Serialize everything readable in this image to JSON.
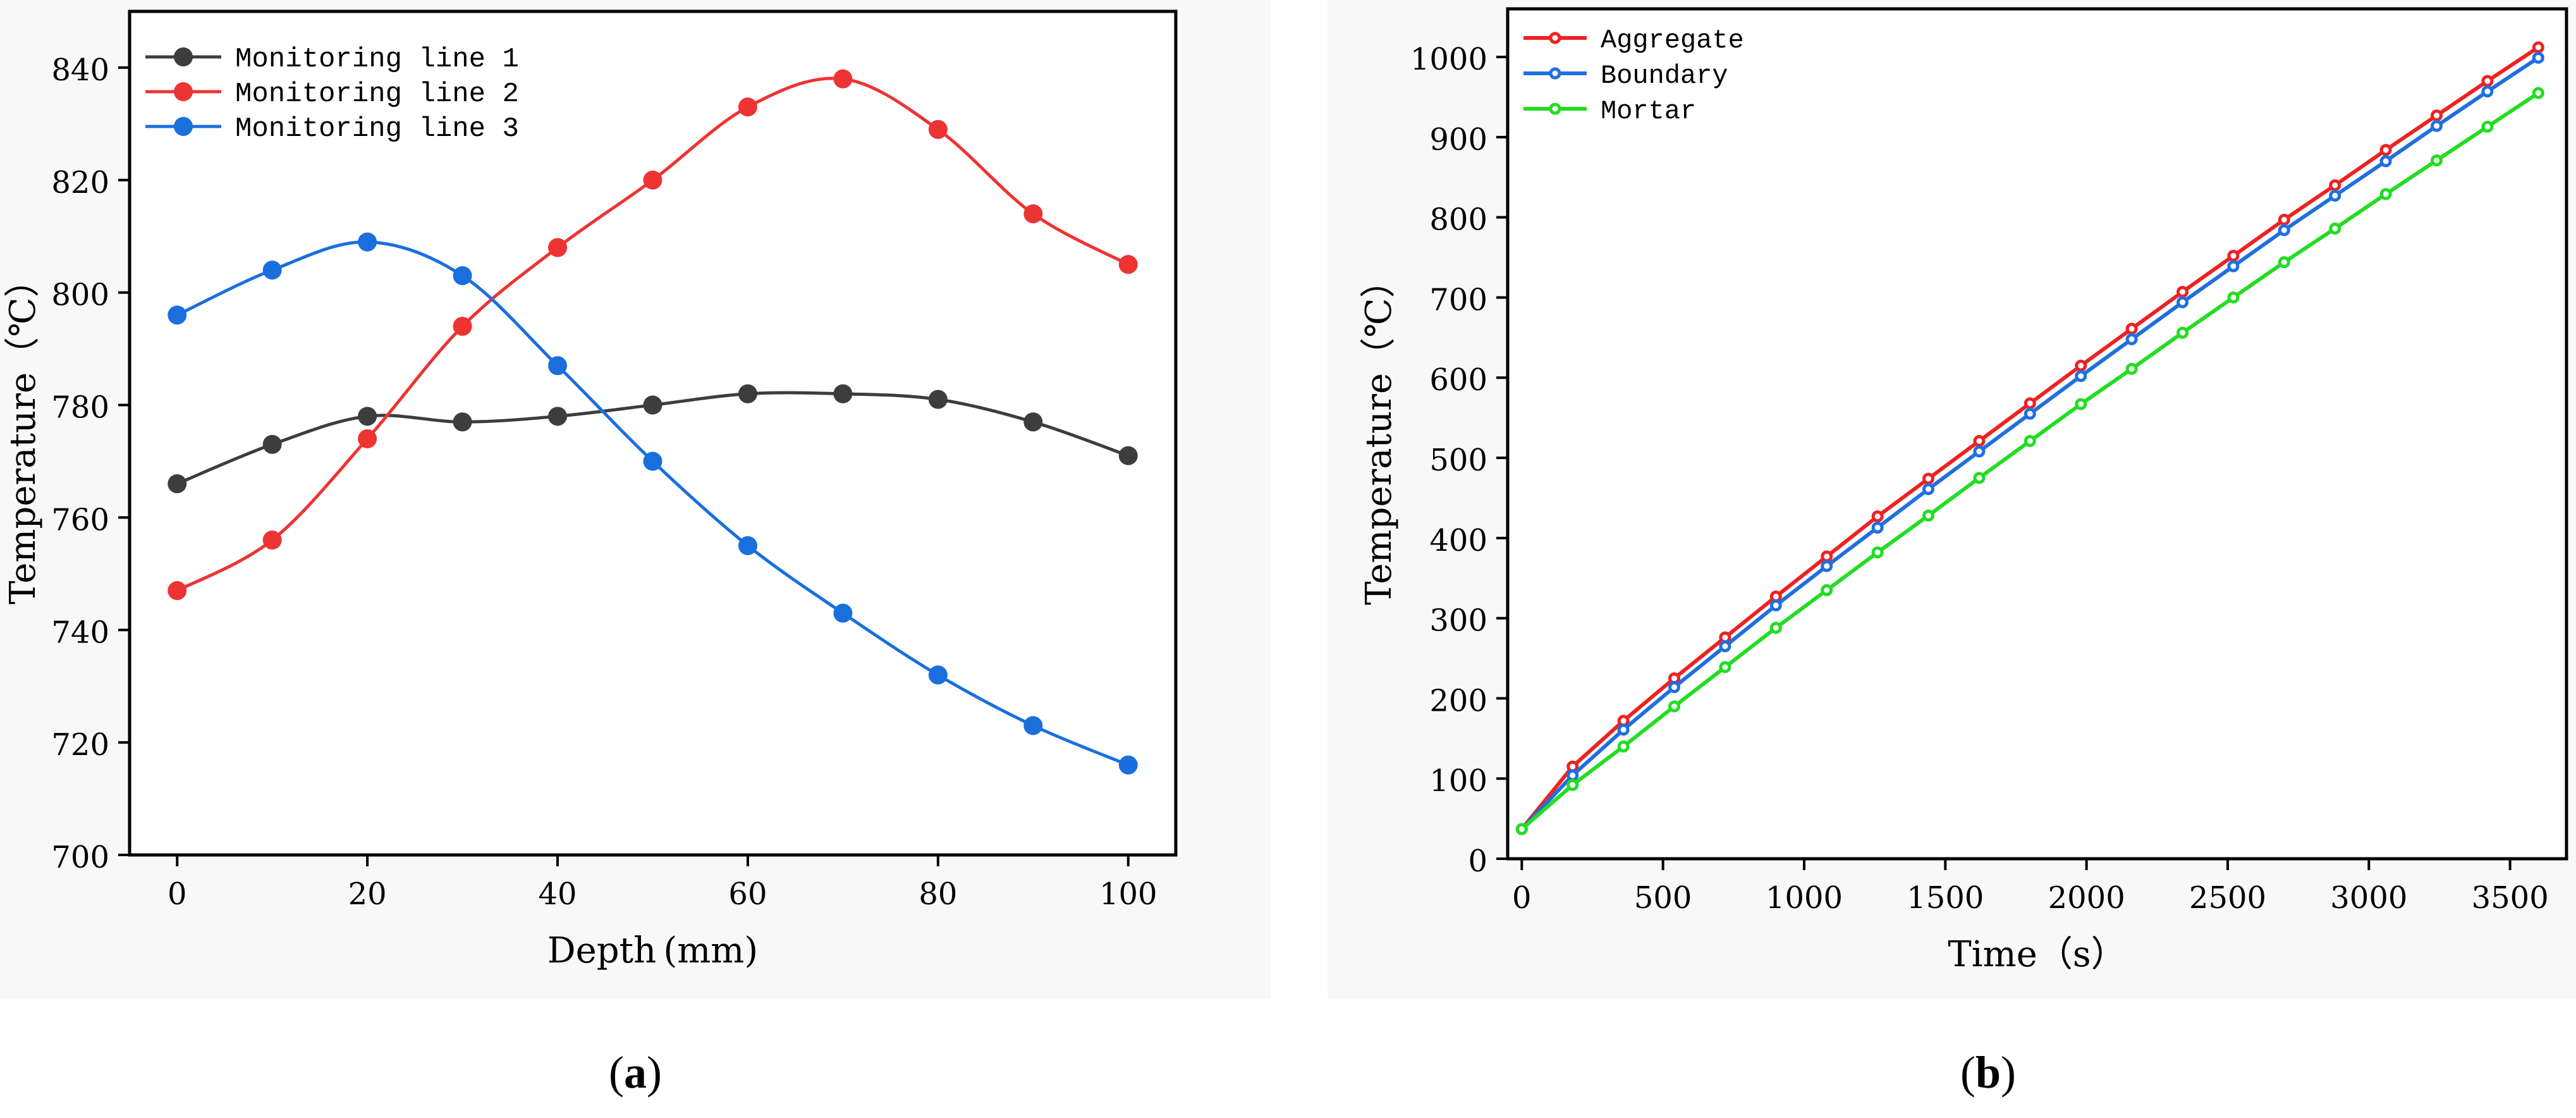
{
  "chart_data": [
    {
      "id": "a",
      "type": "line",
      "smooth": true,
      "x": [
        0,
        10,
        20,
        30,
        40,
        50,
        60,
        70,
        80,
        90,
        100
      ],
      "xlabel": "Depth (mm)",
      "ylabel": "Temperature（℃）",
      "xlim": [
        -5,
        105
      ],
      "ylim": [
        700,
        850
      ],
      "xticks": [
        0,
        20,
        40,
        60,
        80,
        100
      ],
      "yticks": [
        700,
        720,
        740,
        760,
        780,
        800,
        820,
        840
      ],
      "legend_position": "top-left",
      "series": [
        {
          "name": "Monitoring line 1",
          "color": "#3d3d3d",
          "values": [
            766,
            773,
            778,
            777,
            778,
            780,
            782,
            782,
            781,
            777,
            771
          ]
        },
        {
          "name": "Monitoring line 2",
          "color": "#ee3333",
          "values": [
            747,
            756,
            774,
            794,
            808,
            820,
            833,
            838,
            829,
            814,
            805
          ]
        },
        {
          "name": "Monitoring line 3",
          "color": "#1a6fdd",
          "values": [
            796,
            804,
            809,
            803,
            787,
            770,
            755,
            743,
            732,
            723,
            716
          ]
        }
      ]
    },
    {
      "id": "b",
      "type": "line",
      "smooth": false,
      "x": [
        0,
        180,
        360,
        540,
        720,
        900,
        1080,
        1260,
        1440,
        1620,
        1800,
        1980,
        2160,
        2340,
        2520,
        2700,
        2880,
        3060,
        3240,
        3420,
        3600
      ],
      "xlabel": "Time（s）",
      "ylabel": "Temperature（℃）",
      "xlim": [
        -50,
        3700
      ],
      "ylim": [
        0,
        1060
      ],
      "xticks": [
        0,
        500,
        1000,
        1500,
        2000,
        2500,
        3000,
        3500
      ],
      "yticks": [
        0,
        100,
        200,
        300,
        400,
        500,
        600,
        700,
        800,
        900,
        1000
      ],
      "legend_position": "top-left",
      "series": [
        {
          "name": "Aggregate",
          "color": "#ee2222",
          "values": [
            37,
            115,
            172,
            225,
            276,
            327,
            377,
            427,
            474,
            521,
            568,
            615,
            661,
            707,
            752,
            797,
            840,
            884,
            927,
            970,
            1012
          ]
        },
        {
          "name": "Boundary",
          "color": "#1f6fe0",
          "values": [
            37,
            104,
            161,
            214,
            265,
            316,
            365,
            413,
            461,
            508,
            555,
            602,
            648,
            694,
            739,
            784,
            827,
            870,
            914,
            957,
            999
          ]
        },
        {
          "name": "Mortar",
          "color": "#22dd22",
          "values": [
            37,
            92,
            140,
            190,
            239,
            288,
            335,
            382,
            428,
            475,
            521,
            567,
            611,
            656,
            700,
            744,
            786,
            829,
            871,
            913,
            955
          ]
        }
      ]
    }
  ],
  "captions": {
    "a": "a",
    "b": "b"
  }
}
